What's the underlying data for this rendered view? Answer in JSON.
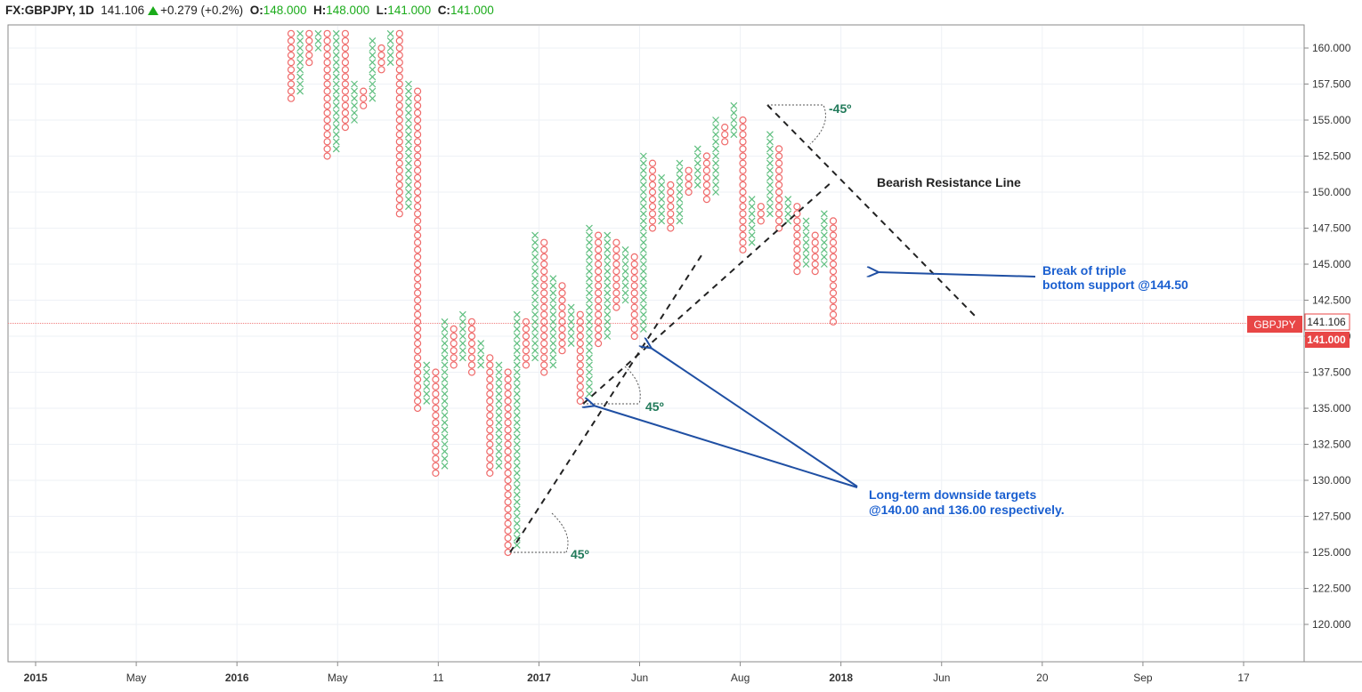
{
  "header": {
    "symbol": "FX:GBPJPY, 1D",
    "last": "141.106",
    "change": "+0.279 (+0.2%)",
    "o_label": "O:",
    "o_value": "148.000",
    "h_label": "H:",
    "h_value": "148.000",
    "l_label": "L:",
    "l_value": "141.000",
    "c_label": "C:",
    "c_value": "141.000"
  },
  "price_tags": {
    "symbol_tag": "GBPJPY",
    "last_price": "141.106",
    "close_price": "141.000"
  },
  "colors": {
    "x_mark": "#5fbf7f",
    "o_mark": "#ef6a6a",
    "annotation_blue": "#1f4fa3",
    "label_blue": "#1a5fd0",
    "angle_green": "#217a5a",
    "tag_red": "#e84646"
  },
  "annotations": {
    "bearish_resistance": "Bearish Resistance Line",
    "break_support": [
      "Break of triple",
      "bottom support @144.50"
    ],
    "targets": [
      "Long-term downside targets",
      "@140.00 and 136.00 respectively."
    ],
    "angle_45": "45º",
    "angle_neg45": "-45º"
  },
  "chart_data": {
    "type": "point_and_figure",
    "symbol": "GBPJPY",
    "box_size": 0.5,
    "y_axis": {
      "ticks": [
        "160.000",
        "157.500",
        "155.000",
        "152.500",
        "150.000",
        "147.500",
        "145.000",
        "142.500",
        "140.000",
        "137.500",
        "135.000",
        "132.500",
        "130.000",
        "127.500",
        "125.000",
        "122.500",
        "120.000"
      ],
      "range": [
        117.5,
        161.5
      ]
    },
    "x_axis": {
      "labels": [
        {
          "text": "2015",
          "bold": true
        },
        {
          "text": "May",
          "bold": false
        },
        {
          "text": "2016",
          "bold": true
        },
        {
          "text": "May",
          "bold": false
        },
        {
          "text": "11",
          "bold": false
        },
        {
          "text": "2017",
          "bold": true
        },
        {
          "text": "Jun",
          "bold": false
        },
        {
          "text": "Aug",
          "bold": false
        },
        {
          "text": "2018",
          "bold": true
        },
        {
          "text": "Jun",
          "bold": false
        },
        {
          "text": "20",
          "bold": false
        },
        {
          "text": "Sep",
          "bold": false
        },
        {
          "text": "17",
          "bold": false
        }
      ]
    },
    "columns": [
      [
        "O",
        156.5,
        161.5
      ],
      [
        "X",
        157,
        161.5
      ],
      [
        "O",
        159,
        161.5
      ],
      [
        "X",
        160,
        161.5
      ],
      [
        "O",
        152.5,
        161
      ],
      [
        "X",
        153,
        161.5
      ],
      [
        "O",
        154.5,
        161.5
      ],
      [
        "X",
        155,
        157.5
      ],
      [
        "O",
        156,
        157
      ],
      [
        "X",
        156.5,
        160.5
      ],
      [
        "O",
        158.5,
        160
      ],
      [
        "X",
        159,
        161.5
      ],
      [
        "O",
        148.5,
        161.5
      ],
      [
        "X",
        149,
        157.5
      ],
      [
        "O",
        135,
        157
      ],
      [
        "X",
        135.5,
        138
      ],
      [
        "O",
        130.5,
        137.5
      ],
      [
        "X",
        131,
        141
      ],
      [
        "O",
        138,
        140.5
      ],
      [
        "X",
        138.5,
        141.5
      ],
      [
        "O",
        137.5,
        141
      ],
      [
        "X",
        138,
        139.5
      ],
      [
        "O",
        130.5,
        138.5
      ],
      [
        "X",
        131,
        138
      ],
      [
        "O",
        125,
        137.5
      ],
      [
        "X",
        125.5,
        141.5
      ],
      [
        "O",
        138,
        141
      ],
      [
        "X",
        138.5,
        147
      ],
      [
        "O",
        137.5,
        146.5
      ],
      [
        "X",
        138,
        144
      ],
      [
        "O",
        139,
        143.5
      ],
      [
        "X",
        139.5,
        142
      ],
      [
        "O",
        135.5,
        141.5
      ],
      [
        "X",
        136,
        147.5
      ],
      [
        "O",
        139.5,
        147
      ],
      [
        "X",
        140,
        147
      ],
      [
        "O",
        142,
        146.5
      ],
      [
        "X",
        142.5,
        146
      ],
      [
        "O",
        140,
        145.5
      ],
      [
        "X",
        140.5,
        152.5
      ],
      [
        "O",
        147.5,
        152
      ],
      [
        "X",
        148,
        151
      ],
      [
        "O",
        147.5,
        150.5
      ],
      [
        "X",
        148,
        152
      ],
      [
        "O",
        150,
        151.5
      ],
      [
        "X",
        150.5,
        153
      ],
      [
        "O",
        149.5,
        152.5
      ],
      [
        "X",
        150,
        155
      ],
      [
        "O",
        153.5,
        154.5
      ],
      [
        "X",
        154,
        156
      ],
      [
        "O",
        146,
        155
      ],
      [
        "X",
        146.5,
        149.5
      ],
      [
        "O",
        148,
        149
      ],
      [
        "X",
        148.5,
        154
      ],
      [
        "O",
        147.5,
        153
      ],
      [
        "X",
        148,
        149.5
      ],
      [
        "O",
        144.5,
        149
      ],
      [
        "X",
        145,
        148
      ],
      [
        "O",
        144.5,
        147
      ],
      [
        "X",
        145,
        148.5
      ],
      [
        "O",
        141,
        148
      ]
    ],
    "guide_lines": [
      {
        "name": "support-45-lower",
        "from": [
          "col 24",
          125
        ],
        "to": [
          "col 36",
          149
        ]
      },
      {
        "name": "support-45-upper",
        "from": [
          "col 32",
          135.5
        ],
        "to": [
          "col 48",
          156
        ]
      },
      {
        "name": "bearish-resistance-45",
        "from": [
          "col 49",
          156
        ],
        "to": [
          "col 66",
          141.5
        ]
      }
    ]
  }
}
